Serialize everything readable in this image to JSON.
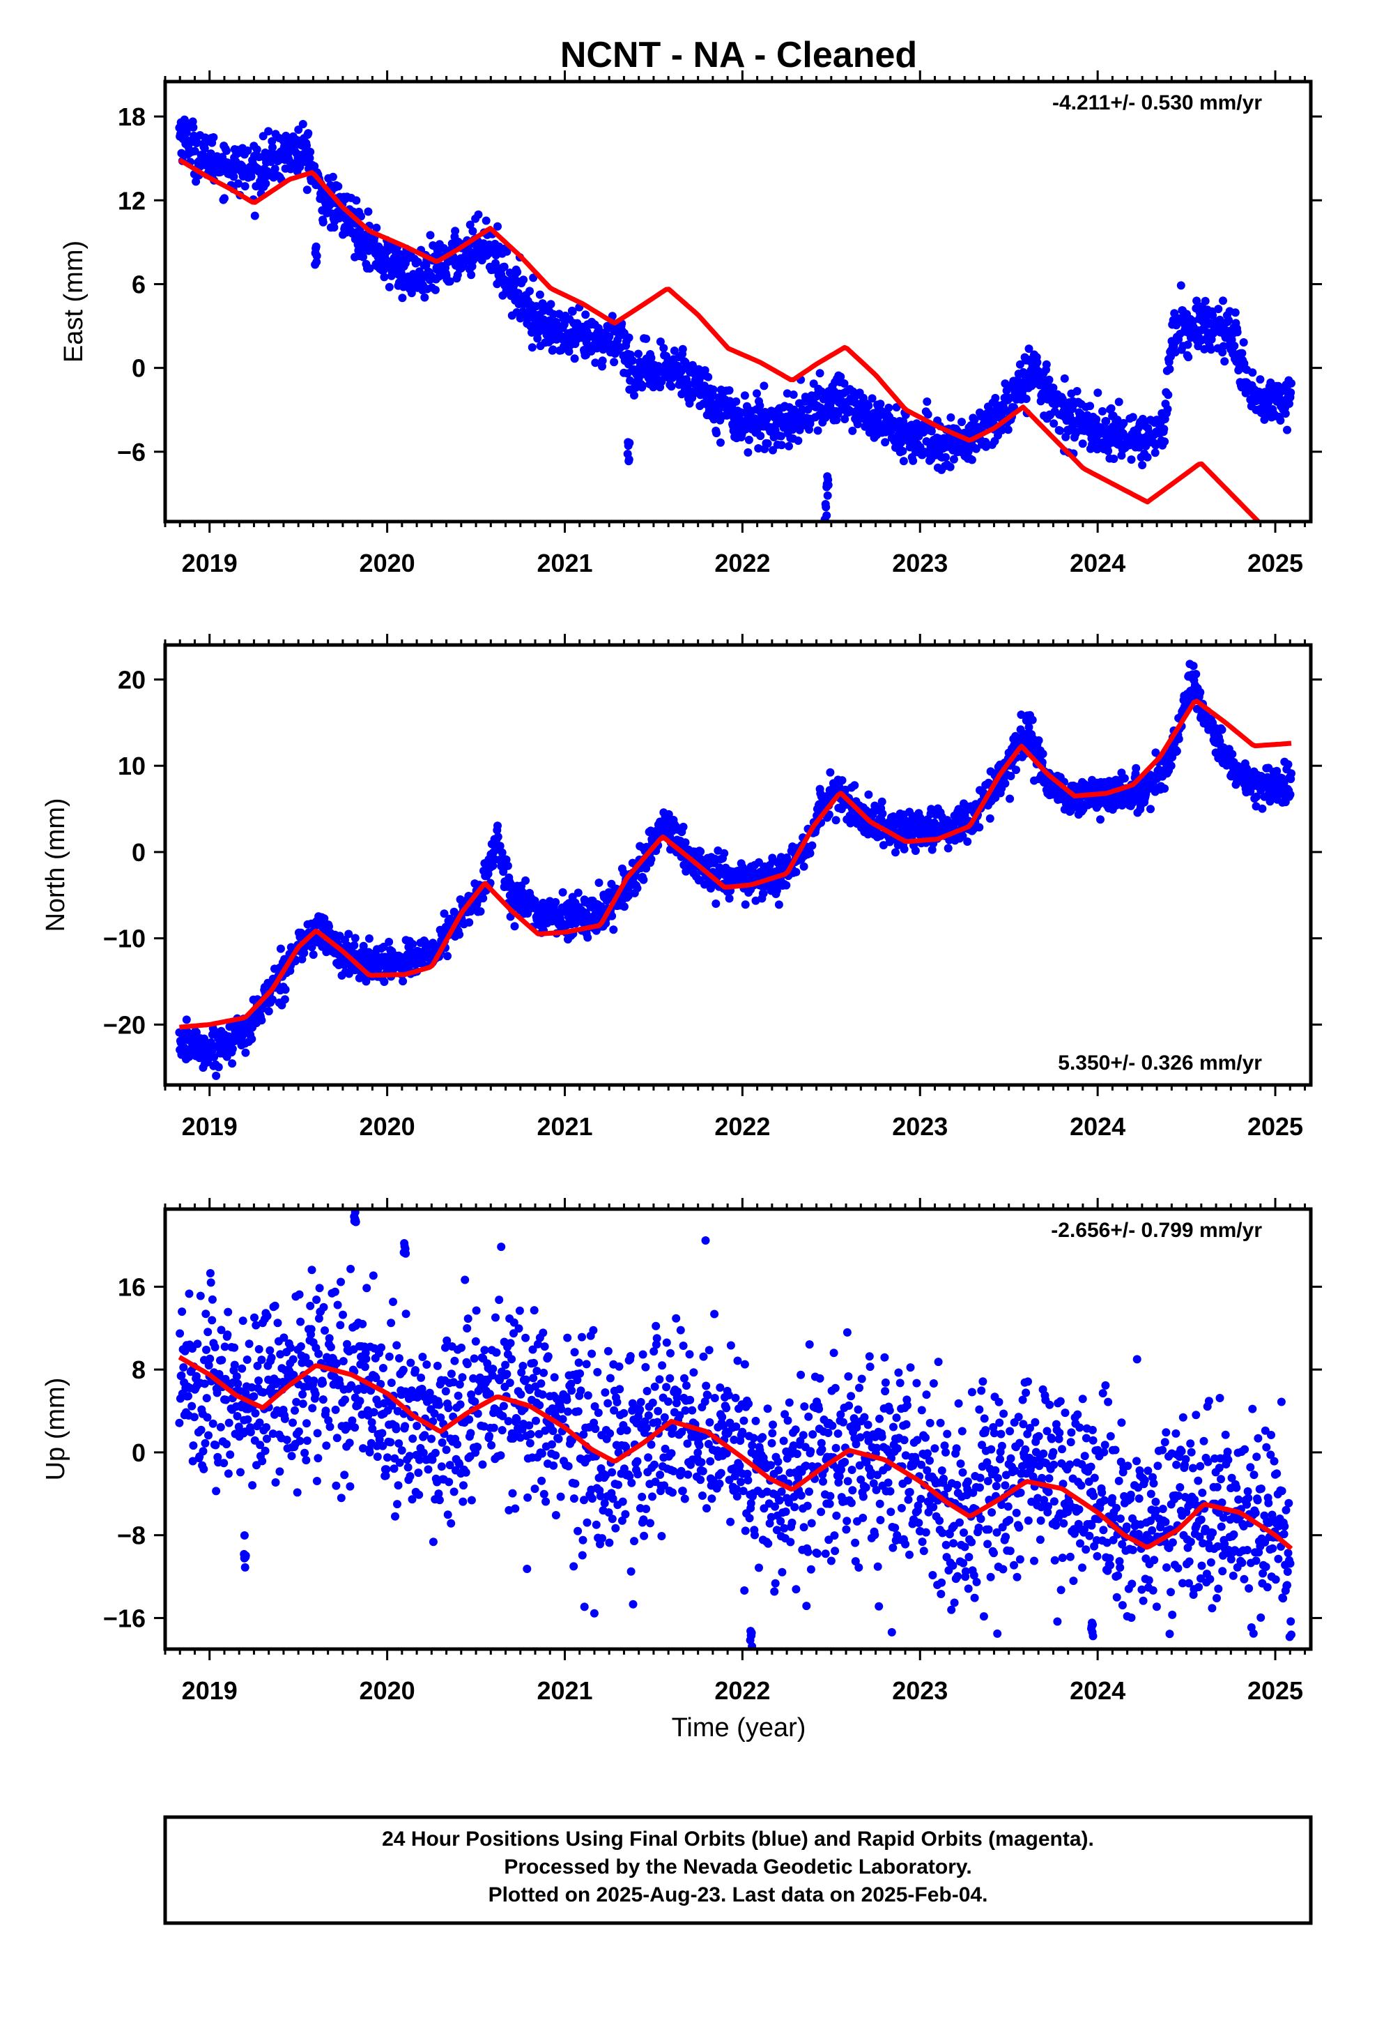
{
  "title": "NCNT  - NA - Cleaned",
  "xlabel": "Time (year)",
  "footer": {
    "line1": "24 Hour Positions Using Final Orbits (blue) and Rapid Orbits (magenta).",
    "line2": "Processed by the Nevada Geodetic Laboratory.",
    "line3": "Plotted on 2025-Aug-23. Last data on 2025-Feb-04."
  },
  "colors": {
    "data": "#0000ff",
    "fit": "#ff0000",
    "frame": "#000000"
  },
  "chart_data": [
    {
      "type": "scatter",
      "name": "east",
      "ylabel": "East (mm)",
      "rate_label": "-4.211+/- 0.530 mm/yr",
      "rate_position": "top-right",
      "xlim": [
        2018.75,
        2025.2
      ],
      "ylim": [
        -11,
        20.5
      ],
      "yticks": [
        -6,
        0,
        6,
        12,
        18
      ],
      "xticks": [
        2019,
        2020,
        2021,
        2022,
        2023,
        2024,
        2025
      ],
      "first_x": 2018.83,
      "last_x": 2025.09,
      "scatter_band": 0.9,
      "obs_curve": [
        [
          2018.83,
          17.0
        ],
        [
          2018.95,
          15.2
        ],
        [
          2019.1,
          14.5
        ],
        [
          2019.25,
          14.0
        ],
        [
          2019.45,
          15.5
        ],
        [
          2019.55,
          15.5
        ],
        [
          2019.62,
          12.5
        ],
        [
          2019.8,
          10.5
        ],
        [
          2020.0,
          7.5
        ],
        [
          2020.2,
          6.5
        ],
        [
          2020.4,
          8.0
        ],
        [
          2020.55,
          9.2
        ],
        [
          2020.7,
          6.0
        ],
        [
          2020.85,
          3.5
        ],
        [
          2021.0,
          2.2
        ],
        [
          2021.2,
          1.8
        ],
        [
          2021.32,
          2.4
        ],
        [
          2021.36,
          0.0
        ],
        [
          2021.5,
          -0.5
        ],
        [
          2021.65,
          0.0
        ],
        [
          2021.85,
          -2.5
        ],
        [
          2022.0,
          -3.8
        ],
        [
          2022.2,
          -4.0
        ],
        [
          2022.4,
          -3.0
        ],
        [
          2022.55,
          -2.0
        ],
        [
          2022.75,
          -3.8
        ],
        [
          2022.95,
          -5.0
        ],
        [
          2023.15,
          -5.6
        ],
        [
          2023.35,
          -4.8
        ],
        [
          2023.5,
          -2.5
        ],
        [
          2023.62,
          0.0
        ],
        [
          2023.75,
          -2.5
        ],
        [
          2023.9,
          -4.0
        ],
        [
          2024.1,
          -4.8
        ],
        [
          2024.3,
          -5.0
        ],
        [
          2024.38,
          -4.3
        ],
        [
          2024.42,
          2.8
        ],
        [
          2024.6,
          3.0
        ],
        [
          2024.75,
          2.5
        ],
        [
          2024.85,
          -1.0
        ],
        [
          2024.95,
          -2.8
        ],
        [
          2025.09,
          -1.8
        ]
      ],
      "spikes": [
        [
          2021.36,
          -6.0
        ],
        [
          2022.47,
          -10.5
        ],
        [
          2022.48,
          -8.5
        ],
        [
          2019.6,
          8.0
        ]
      ],
      "fit_curve": [
        [
          2018.83,
          14.9
        ],
        [
          2019.0,
          13.6
        ],
        [
          2019.12,
          12.8
        ],
        [
          2019.25,
          11.8
        ],
        [
          2019.45,
          13.5
        ],
        [
          2019.58,
          14.0
        ],
        [
          2019.75,
          11.5
        ],
        [
          2019.9,
          9.8
        ],
        [
          2020.1,
          8.7
        ],
        [
          2020.28,
          7.6
        ],
        [
          2020.4,
          8.5
        ],
        [
          2020.58,
          10.0
        ],
        [
          2020.75,
          8.0
        ],
        [
          2020.92,
          5.7
        ],
        [
          2021.1,
          4.6
        ],
        [
          2021.28,
          3.2
        ],
        [
          2021.45,
          4.6
        ],
        [
          2021.58,
          5.7
        ],
        [
          2021.75,
          3.8
        ],
        [
          2021.92,
          1.4
        ],
        [
          2022.1,
          0.4
        ],
        [
          2022.28,
          -0.9
        ],
        [
          2022.42,
          0.3
        ],
        [
          2022.58,
          1.5
        ],
        [
          2022.75,
          -0.5
        ],
        [
          2022.92,
          -3.0
        ],
        [
          2023.1,
          -4.2
        ],
        [
          2023.28,
          -5.2
        ],
        [
          2023.42,
          -4.3
        ],
        [
          2023.58,
          -2.8
        ],
        [
          2023.75,
          -5.0
        ],
        [
          2023.92,
          -7.2
        ],
        [
          2024.1,
          -8.4
        ],
        [
          2024.28,
          -9.6
        ],
        [
          2024.42,
          -8.3
        ],
        [
          2024.58,
          -6.8
        ],
        [
          2024.75,
          -9.0
        ],
        [
          2024.92,
          -11.2
        ]
      ]
    },
    {
      "type": "scatter",
      "name": "north",
      "ylabel": "North (mm)",
      "rate_label": "5.350+/- 0.326 mm/yr",
      "rate_position": "bottom-right",
      "xlim": [
        2018.75,
        2025.2
      ],
      "ylim": [
        -27,
        24
      ],
      "yticks": [
        -20,
        -10,
        0,
        10,
        20
      ],
      "xticks": [
        2019,
        2020,
        2021,
        2022,
        2023,
        2024,
        2025
      ],
      "first_x": 2018.83,
      "last_x": 2025.09,
      "scatter_band": 1.1,
      "obs_curve": [
        [
          2018.83,
          -22.0
        ],
        [
          2019.0,
          -23.0
        ],
        [
          2019.2,
          -21.0
        ],
        [
          2019.35,
          -16.0
        ],
        [
          2019.5,
          -11.0
        ],
        [
          2019.62,
          -9.0
        ],
        [
          2019.75,
          -12.0
        ],
        [
          2019.9,
          -13.0
        ],
        [
          2020.1,
          -12.5
        ],
        [
          2020.25,
          -12.0
        ],
        [
          2020.4,
          -8.0
        ],
        [
          2020.55,
          -4.0
        ],
        [
          2020.62,
          1.5
        ],
        [
          2020.7,
          -5.0
        ],
        [
          2020.85,
          -7.0
        ],
        [
          2021.0,
          -7.5
        ],
        [
          2021.2,
          -7.0
        ],
        [
          2021.35,
          -4.0
        ],
        [
          2021.5,
          1.0
        ],
        [
          2021.58,
          3.0
        ],
        [
          2021.7,
          -1.0
        ],
        [
          2021.85,
          -2.5
        ],
        [
          2022.0,
          -3.5
        ],
        [
          2022.2,
          -3.0
        ],
        [
          2022.35,
          0.0
        ],
        [
          2022.47,
          6.0
        ],
        [
          2022.55,
          7.0
        ],
        [
          2022.7,
          3.5
        ],
        [
          2022.9,
          2.5
        ],
        [
          2023.1,
          2.5
        ],
        [
          2023.3,
          4.0
        ],
        [
          2023.5,
          10.0
        ],
        [
          2023.6,
          14.0
        ],
        [
          2023.7,
          9.0
        ],
        [
          2023.85,
          6.0
        ],
        [
          2024.05,
          6.5
        ],
        [
          2024.25,
          7.0
        ],
        [
          2024.4,
          10.0
        ],
        [
          2024.52,
          20.0
        ],
        [
          2024.62,
          15.0
        ],
        [
          2024.75,
          10.0
        ],
        [
          2024.9,
          7.5
        ],
        [
          2025.09,
          8.0
        ]
      ],
      "spikes": [],
      "fit_curve": [
        [
          2018.83,
          -20.3
        ],
        [
          2019.0,
          -20.0
        ],
        [
          2019.2,
          -19.2
        ],
        [
          2019.35,
          -16.0
        ],
        [
          2019.5,
          -11.0
        ],
        [
          2019.6,
          -9.1
        ],
        [
          2019.75,
          -11.5
        ],
        [
          2019.9,
          -14.3
        ],
        [
          2020.1,
          -14.2
        ],
        [
          2020.25,
          -13.3
        ],
        [
          2020.42,
          -7.0
        ],
        [
          2020.55,
          -3.6
        ],
        [
          2020.7,
          -6.8
        ],
        [
          2020.85,
          -9.5
        ],
        [
          2021.0,
          -9.3
        ],
        [
          2021.2,
          -8.5
        ],
        [
          2021.35,
          -3.0
        ],
        [
          2021.55,
          1.8
        ],
        [
          2021.72,
          -1.0
        ],
        [
          2021.9,
          -4.1
        ],
        [
          2022.05,
          -3.8
        ],
        [
          2022.25,
          -2.5
        ],
        [
          2022.4,
          3.0
        ],
        [
          2022.55,
          6.9
        ],
        [
          2022.72,
          3.5
        ],
        [
          2022.92,
          1.2
        ],
        [
          2023.1,
          1.5
        ],
        [
          2023.28,
          3.0
        ],
        [
          2023.45,
          9.0
        ],
        [
          2023.57,
          12.3
        ],
        [
          2023.72,
          9.0
        ],
        [
          2023.87,
          6.5
        ],
        [
          2024.05,
          6.8
        ],
        [
          2024.2,
          7.8
        ],
        [
          2024.35,
          11.0
        ],
        [
          2024.55,
          17.6
        ],
        [
          2024.72,
          15.0
        ],
        [
          2024.88,
          12.3
        ],
        [
          2025.09,
          12.6
        ]
      ]
    },
    {
      "type": "scatter",
      "name": "up",
      "ylabel": "Up (mm)",
      "rate_label": "-2.656+/- 0.799 mm/yr",
      "rate_position": "top-right",
      "xlim": [
        2018.75,
        2025.2
      ],
      "ylim": [
        -19,
        23.5
      ],
      "yticks": [
        -16,
        -8,
        0,
        8,
        16
      ],
      "xticks": [
        2019,
        2020,
        2021,
        2022,
        2023,
        2024,
        2025
      ],
      "first_x": 2018.83,
      "last_x": 2025.09,
      "scatter_band": 4.5,
      "obs_curve": [
        [
          2018.83,
          8.0
        ],
        [
          2019.0,
          6.5
        ],
        [
          2019.2,
          4.8
        ],
        [
          2019.4,
          6.5
        ],
        [
          2019.6,
          8.5
        ],
        [
          2019.8,
          7.0
        ],
        [
          2020.0,
          5.0
        ],
        [
          2020.2,
          2.0
        ],
        [
          2020.4,
          3.5
        ],
        [
          2020.6,
          5.5
        ],
        [
          2020.8,
          4.0
        ],
        [
          2021.0,
          2.0
        ],
        [
          2021.2,
          -0.5
        ],
        [
          2021.4,
          0.5
        ],
        [
          2021.6,
          3.0
        ],
        [
          2021.8,
          2.0
        ],
        [
          2022.0,
          -0.5
        ],
        [
          2022.2,
          -3.0
        ],
        [
          2022.4,
          -1.5
        ],
        [
          2022.6,
          0.5
        ],
        [
          2022.8,
          -1.0
        ],
        [
          2023.0,
          -2.0
        ],
        [
          2023.2,
          -5.0
        ],
        [
          2023.4,
          -4.0
        ],
        [
          2023.6,
          -1.5
        ],
        [
          2023.8,
          -3.0
        ],
        [
          2024.0,
          -5.0
        ],
        [
          2024.2,
          -7.5
        ],
        [
          2024.4,
          -7.0
        ],
        [
          2024.6,
          -5.0
        ],
        [
          2024.8,
          -6.0
        ],
        [
          2025.0,
          -7.5
        ],
        [
          2025.09,
          -8.5
        ]
      ],
      "spikes": [
        [
          2019.82,
          22.5
        ],
        [
          2019.2,
          -10.5
        ],
        [
          2022.05,
          -18.0
        ],
        [
          2023.97,
          -17.0
        ],
        [
          2020.1,
          19.5
        ]
      ],
      "fit_curve": [
        [
          2018.83,
          9.2
        ],
        [
          2019.0,
          7.5
        ],
        [
          2019.15,
          5.5
        ],
        [
          2019.3,
          4.3
        ],
        [
          2019.45,
          6.5
        ],
        [
          2019.6,
          8.4
        ],
        [
          2019.8,
          7.5
        ],
        [
          2020.0,
          5.7
        ],
        [
          2020.15,
          3.5
        ],
        [
          2020.3,
          2.0
        ],
        [
          2020.45,
          3.8
        ],
        [
          2020.62,
          5.4
        ],
        [
          2020.8,
          4.5
        ],
        [
          2021.0,
          2.4
        ],
        [
          2021.15,
          0.3
        ],
        [
          2021.28,
          -0.9
        ],
        [
          2021.45,
          1.0
        ],
        [
          2021.6,
          3.0
        ],
        [
          2021.8,
          2.0
        ],
        [
          2022.0,
          -0.5
        ],
        [
          2022.15,
          -2.5
        ],
        [
          2022.28,
          -3.6
        ],
        [
          2022.45,
          -1.5
        ],
        [
          2022.6,
          0.2
        ],
        [
          2022.8,
          -0.7
        ],
        [
          2023.0,
          -2.8
        ],
        [
          2023.15,
          -4.8
        ],
        [
          2023.28,
          -6.2
        ],
        [
          2023.45,
          -4.5
        ],
        [
          2023.6,
          -2.8
        ],
        [
          2023.8,
          -3.5
        ],
        [
          2024.0,
          -5.8
        ],
        [
          2024.15,
          -8.0
        ],
        [
          2024.28,
          -9.2
        ],
        [
          2024.45,
          -7.5
        ],
        [
          2024.6,
          -5.0
        ],
        [
          2024.8,
          -5.8
        ],
        [
          2025.0,
          -8.0
        ],
        [
          2025.09,
          -9.3
        ]
      ]
    }
  ]
}
